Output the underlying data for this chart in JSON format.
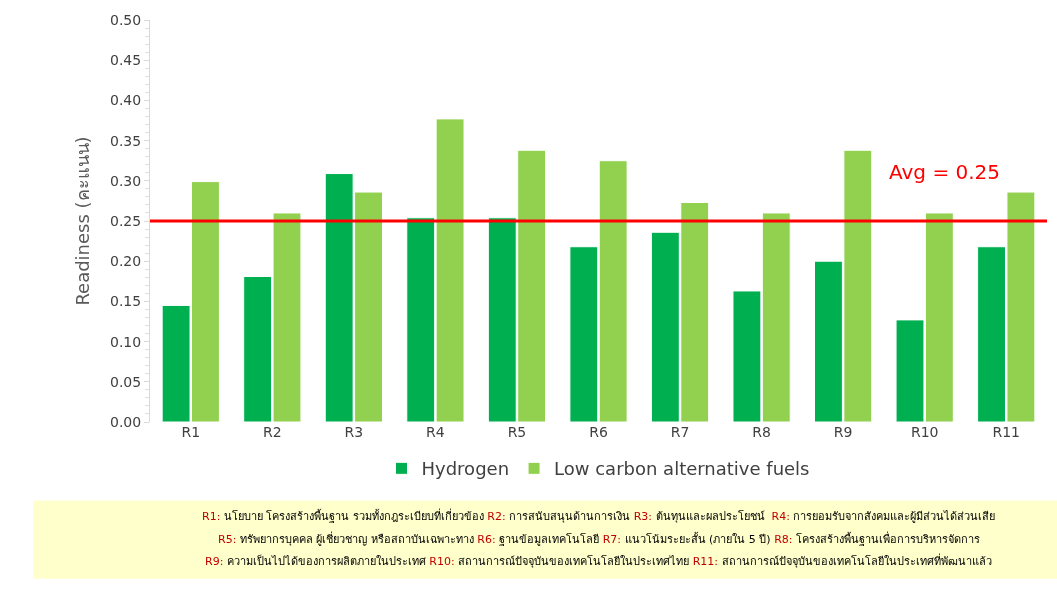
{
  "chart_data": {
    "type": "bar",
    "ylabel": "Readiness (คะแนน)",
    "categories": [
      "R1",
      "R2",
      "R3",
      "R4",
      "R5",
      "R6",
      "R7",
      "R8",
      "R9",
      "R10",
      "R11"
    ],
    "series": [
      {
        "name": "Hydrogen",
        "color": "#00b050",
        "values": [
          0.145,
          0.181,
          0.309,
          0.254,
          0.254,
          0.218,
          0.236,
          0.163,
          0.2,
          0.127,
          0.218
        ]
      },
      {
        "name": "Low carbon alternative fuels",
        "color": "#92d050",
        "values": [
          0.299,
          0.26,
          0.286,
          0.377,
          0.338,
          0.325,
          0.273,
          0.26,
          0.338,
          0.26,
          0.286
        ]
      }
    ],
    "ylim": [
      0,
      0.5
    ],
    "yticks": [
      {
        "value": 0,
        "label": "0.00"
      },
      {
        "value": 0.05,
        "label": "0.05"
      },
      {
        "value": 0.1,
        "label": "0.10"
      },
      {
        "value": 0.15,
        "label": "0.15"
      },
      {
        "value": 0.2,
        "label": "0.20"
      },
      {
        "value": 0.25,
        "label": "0.25"
      },
      {
        "value": 0.3,
        "label": "0.30"
      },
      {
        "value": 0.35,
        "label": "0.35"
      },
      {
        "value": 0.4,
        "label": "0.40"
      },
      {
        "value": 0.45,
        "label": "0.45"
      },
      {
        "value": 0.5,
        "label": "0.50"
      }
    ],
    "ref_lines": [
      {
        "axis": "y",
        "value": 0.25,
        "label": "Avg = 0.25",
        "color": "#ff0000"
      }
    ],
    "legend": "bottom",
    "annotations": [
      "R1: นโยบาย โครงสร้างพื้นฐาน รวมทั้งกฎระเบียบที่เกี่ยวข้อง R2: การสนับสนุนด้านการเงิน R3: ต้นทุนและผลประโยชน์  R4: การยอมรับจากสังคมและผู้มีส่วนได้ส่วนเสีย",
      "R5: ทรัพยากรบุคคล ผู้เชี่ยวชาญ หรือสถาบันเฉพาะทาง R6: ฐานข้อมูลเทคโนโลยี R7: แนวโน้มระยะสั้น (ภายใน 5 ปี) R8: โครงสร้างพื้นฐานเพื่อการบริหารจัดการ",
      "R9: ความเป็นไปได้ของการผลิตภายในประเทศ R10: สถานการณ์ปัจจุบันของเทคโนโลยีในประเทศไทย R11: สถานการณ์ปัจจุบันของเทคโนโลยีในประเทศที่พัฒนาแล้ว"
    ]
  }
}
